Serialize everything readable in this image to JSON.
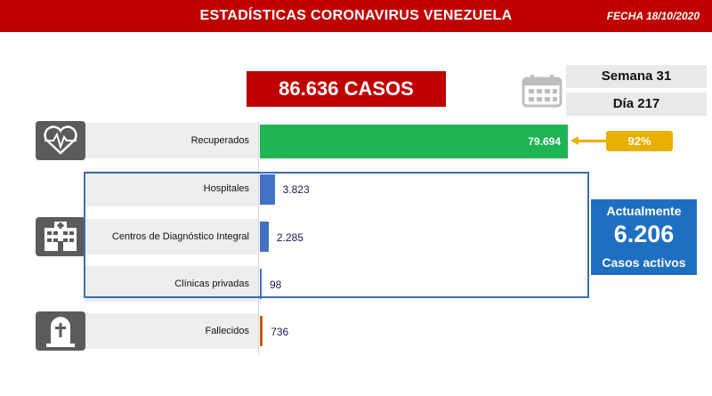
{
  "header": {
    "title": "ESTADÍSTICAS CORONAVIRUS VENEZUELA",
    "date": "FECHA 18/10/2020"
  },
  "total_cases": "86.636 CASOS",
  "week": "Semana 31",
  "day": "Día 217",
  "recovered_pct": "92%",
  "active": {
    "top": "Actualmente",
    "value": "6.206",
    "bottom": "Casos activos"
  },
  "icons": {
    "recovered": "heart-monitor-icon",
    "hospitals": "hospital-building-icon",
    "deaths": "tombstone-icon",
    "calendar": "calendar-icon"
  },
  "colors": {
    "header": "#c00000",
    "recovered": "#1eb353",
    "hospital_bar": "#4472c4",
    "deaths_bar": "#c65911",
    "percent_badge": "#e8b000",
    "active_box": "#1f6fc1"
  },
  "chart_data": {
    "type": "bar",
    "orientation": "horizontal",
    "categories": [
      "Recuperados",
      "Hospitales",
      "Centros de Diagnóstico Integral",
      "Clínicas privadas",
      "Fallecidos"
    ],
    "values": [
      79694,
      3823,
      2285,
      98,
      736
    ],
    "value_labels": [
      "79.694",
      "3.823",
      "2.285",
      "98",
      "736"
    ],
    "xlim": [
      0,
      79694
    ]
  }
}
